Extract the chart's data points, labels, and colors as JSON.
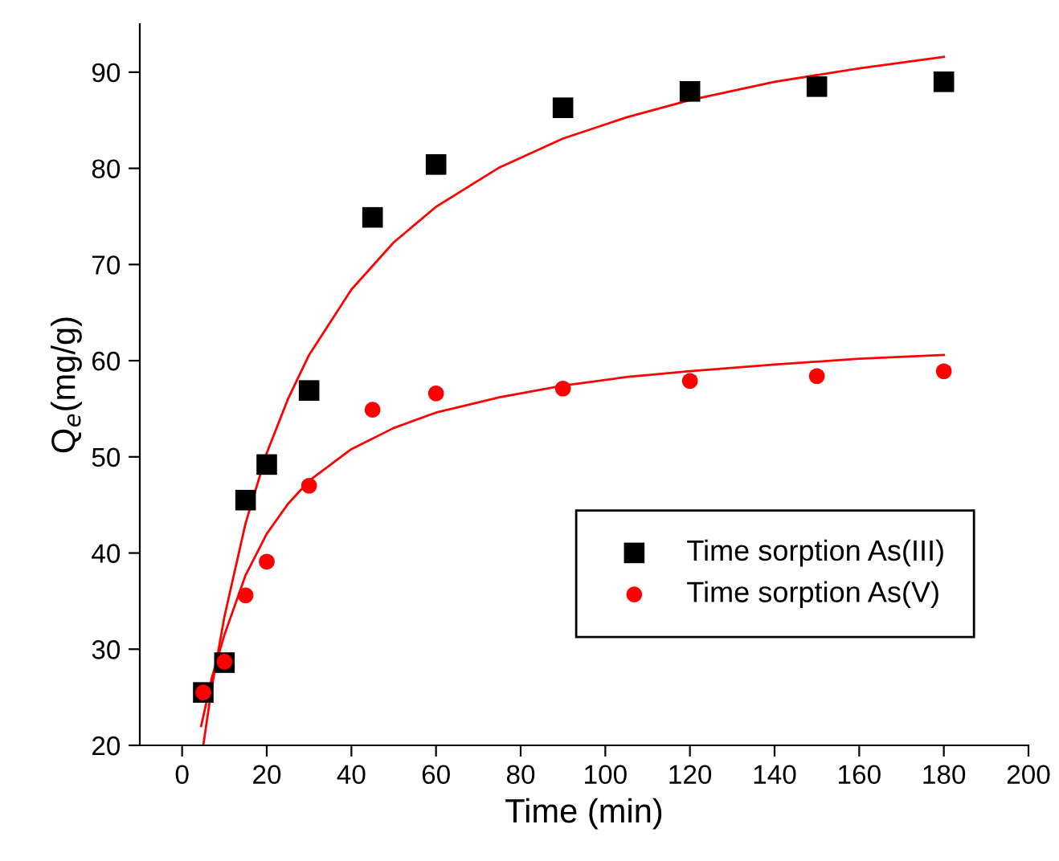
{
  "chart_data": {
    "type": "scatter",
    "xlabel": "Time (min)",
    "ylabel": "Q$_{e}$(mg/g)",
    "xlim": [
      -10,
      200
    ],
    "ylim": [
      20,
      95
    ],
    "xticks": [
      0,
      20,
      40,
      60,
      80,
      100,
      120,
      140,
      160,
      180,
      200
    ],
    "yticks": [
      20,
      30,
      40,
      50,
      60,
      70,
      80,
      90
    ],
    "grid": false,
    "legend": "bottom right",
    "series": [
      {
        "name": "Time sorption As(III)",
        "color": "#000000",
        "marker": "square",
        "x": [
          5,
          10,
          15,
          20,
          30,
          45,
          60,
          90,
          120,
          150,
          180
        ],
        "values": [
          25.5,
          28.6,
          45.5,
          49.2,
          56.9,
          74.9,
          80.4,
          86.3,
          88.0,
          88.5,
          89.0
        ]
      },
      {
        "name": "Time sorption As(V)",
        "color": "#ff0000",
        "marker": "circle",
        "x": [
          5,
          10,
          15,
          20,
          30,
          45,
          60,
          90,
          120,
          150,
          180
        ],
        "values": [
          25.5,
          28.7,
          35.6,
          39.1,
          47.0,
          54.9,
          56.6,
          57.1,
          57.9,
          58.4,
          58.9
        ]
      },
      {
        "type": "line",
        "color": "#ff0000",
        "marker": "none",
        "line_style": "solid",
        "x": [
          5,
          7,
          10,
          15,
          20,
          25,
          30,
          40,
          50,
          60,
          75,
          90,
          105,
          120,
          140,
          160,
          180
        ],
        "values": [
          20.0,
          26.0,
          33.4,
          43.1,
          50.4,
          56.0,
          60.6,
          67.4,
          72.3,
          76.0,
          80.1,
          83.1,
          85.3,
          87.1,
          89.0,
          90.4,
          91.6
        ]
      },
      {
        "type": "line",
        "color": "#ff0000",
        "marker": "none",
        "line_style": "solid",
        "x": [
          4.5,
          5,
          7,
          10,
          15,
          20,
          25,
          30,
          40,
          50,
          60,
          75,
          90,
          105,
          120,
          140,
          160,
          180
        ],
        "values": [
          22.0,
          23.0,
          27.0,
          31.5,
          37.7,
          42.0,
          45.1,
          47.5,
          50.8,
          53.0,
          54.6,
          56.2,
          57.4,
          58.3,
          58.9,
          59.6,
          60.2,
          60.6
        ]
      }
    ]
  }
}
